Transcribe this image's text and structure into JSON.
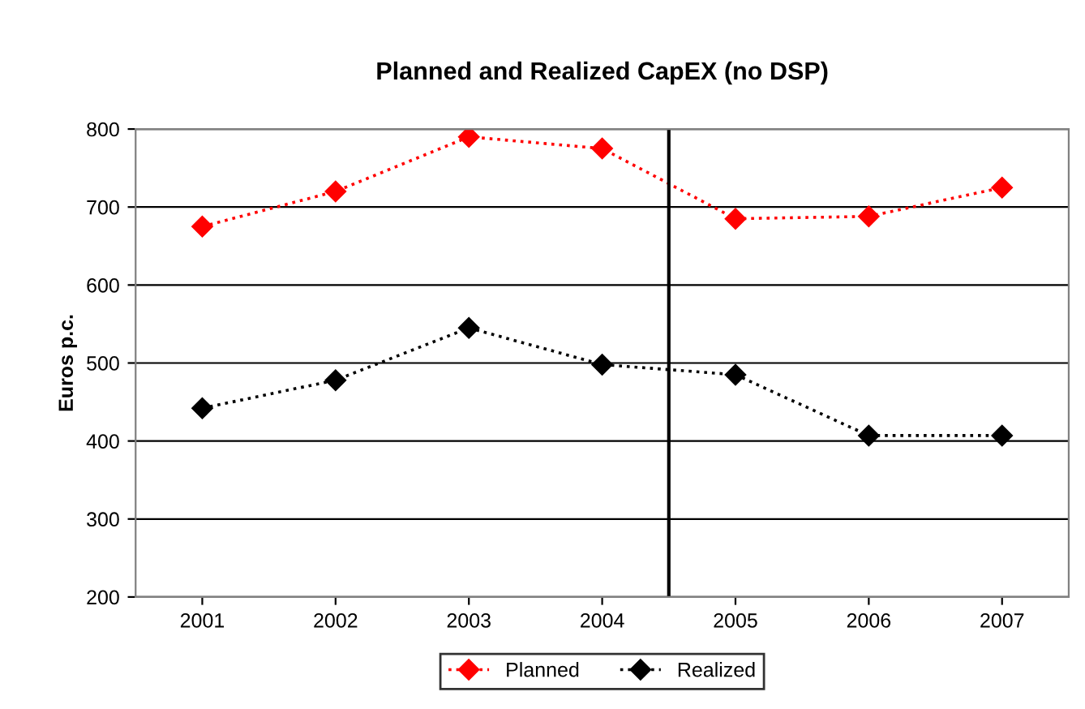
{
  "chart_data": {
    "type": "line",
    "title": "Planned and Realized CapEX (no DSP)",
    "ylabel": "Euros p.c.",
    "x": [
      2001,
      2002,
      2003,
      2004,
      2005,
      2006,
      2007
    ],
    "xlim": [
      2000.5,
      2007.5
    ],
    "xticks": [
      2001,
      2002,
      2003,
      2004,
      2005,
      2006,
      2007
    ],
    "ylim": [
      200,
      800
    ],
    "yticks": [
      200,
      300,
      400,
      500,
      600,
      700,
      800
    ],
    "series": [
      {
        "name": "Planned",
        "color": "#ff0000",
        "values": [
          675,
          720,
          790,
          775,
          685,
          688,
          725
        ]
      },
      {
        "name": "Realized",
        "color": "#000000",
        "values": [
          442,
          478,
          545,
          498,
          485,
          407,
          407
        ]
      }
    ],
    "ref_lines": [
      {
        "axis": "x",
        "value": 2004.5,
        "label": null,
        "color": "#000000",
        "line_style": "solid"
      }
    ],
    "marker": "diamond",
    "line_style": "dotted",
    "grid": "y",
    "legend": "bottom"
  }
}
